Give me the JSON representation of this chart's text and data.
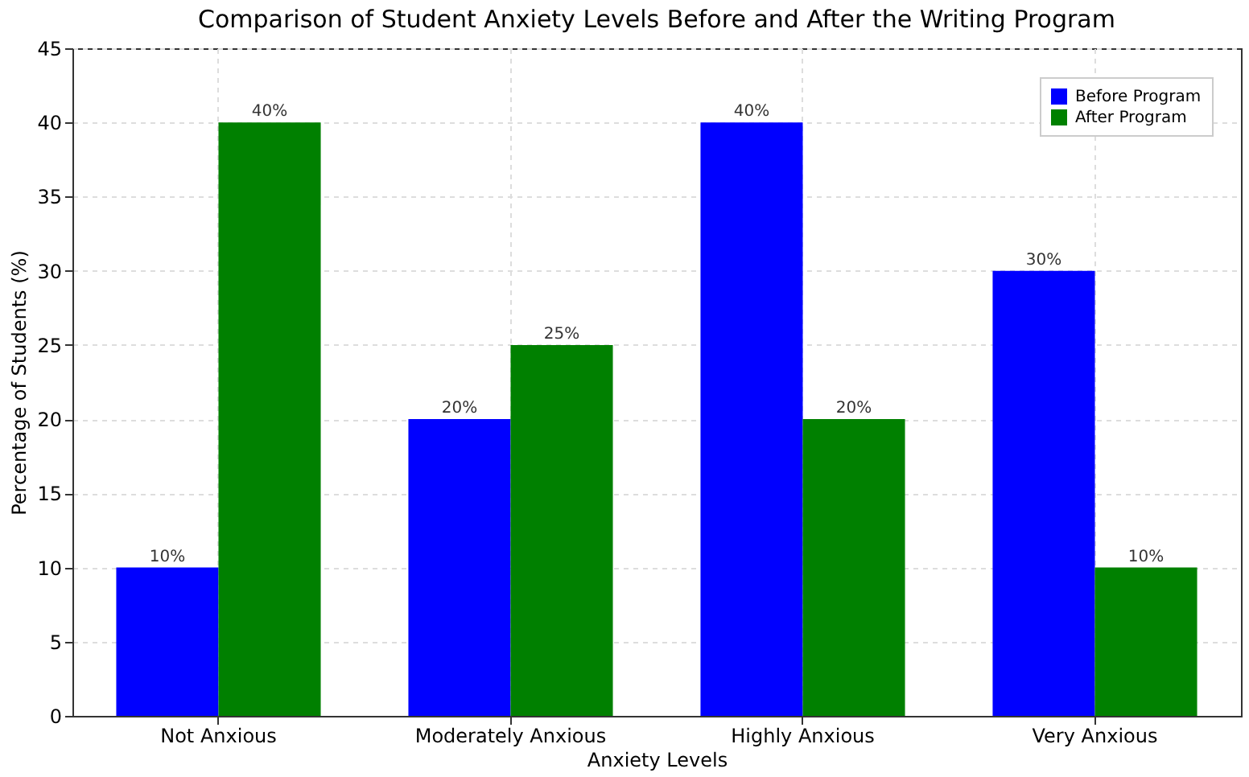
{
  "chart_data": {
    "type": "bar",
    "title": "Comparison of Student Anxiety Levels Before and After the Writing Program",
    "xlabel": "Anxiety Levels",
    "ylabel": "Percentage of Students (%)",
    "categories": [
      "Not Anxious",
      "Moderately Anxious",
      "Highly Anxious",
      "Very Anxious"
    ],
    "series": [
      {
        "name": "Before Program",
        "color": "#0000ff",
        "values": [
          10,
          20,
          40,
          30
        ],
        "value_labels": [
          "10%",
          "20%",
          "40%",
          "30%"
        ]
      },
      {
        "name": "After Program",
        "color": "#008000",
        "values": [
          40,
          25,
          20,
          10
        ],
        "value_labels": [
          "40%",
          "25%",
          "20%",
          "10%"
        ]
      }
    ],
    "ylim": [
      0,
      45
    ],
    "yticks": [
      0,
      5,
      10,
      15,
      20,
      25,
      30,
      35,
      40,
      45
    ],
    "grid": true,
    "legend": "top right"
  }
}
